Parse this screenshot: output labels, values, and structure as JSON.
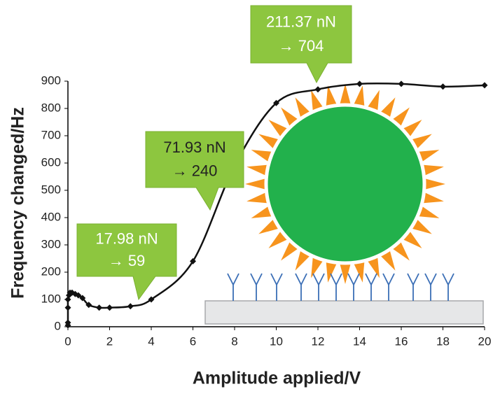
{
  "chart_data": {
    "type": "line",
    "x_label": "Amplitude applied/V",
    "y_label": "Frequency changed/Hz",
    "x": [
      0,
      0,
      0,
      0,
      0.05,
      0.1,
      0.2,
      0.35,
      0.5,
      0.7,
      1,
      1.5,
      2,
      3,
      4,
      6,
      8,
      10,
      12,
      14,
      16,
      18,
      20
    ],
    "values": [
      5,
      15,
      70,
      100,
      115,
      125,
      125,
      120,
      115,
      105,
      80,
      70,
      70,
      75,
      100,
      240,
      590,
      820,
      870,
      890,
      890,
      880,
      885
    ],
    "color": "#111111",
    "xlim": [
      0,
      20
    ],
    "xticks": [
      0,
      2,
      4,
      6,
      8,
      10,
      12,
      14,
      16,
      18,
      20
    ],
    "ylim": [
      0,
      900
    ],
    "yticks": [
      0,
      100,
      200,
      300,
      400,
      500,
      600,
      700,
      800,
      900
    ],
    "annotations": [
      {
        "lines": [
          "211.37 nN",
          "→ 704"
        ]
      },
      {
        "lines": [
          "71.93 nN",
          "→ 240"
        ]
      },
      {
        "lines": [
          "17.98 nN",
          "→ 59"
        ]
      }
    ]
  }
}
